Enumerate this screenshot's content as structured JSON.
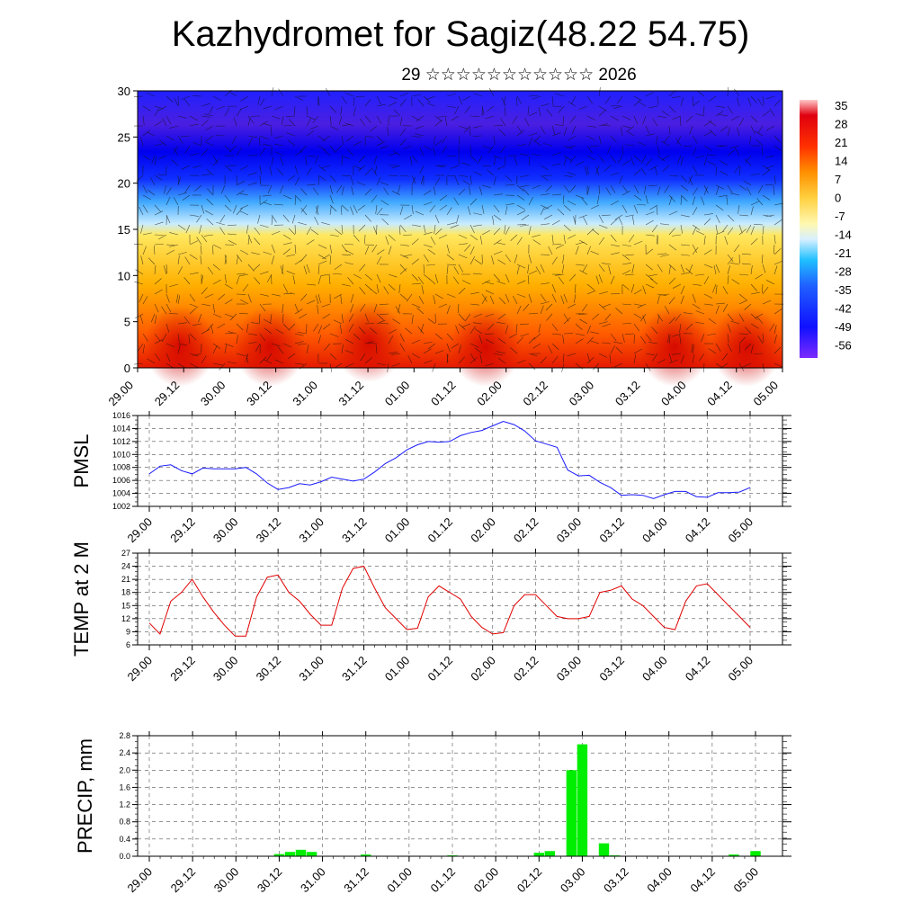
{
  "title": "Kazhydromet for Sagiz(48.22 54.75)",
  "subtitle": "29 ☆☆☆☆☆☆☆☆☆☆☆ 2026",
  "colorbar": {
    "labels": [
      "35",
      "28",
      "21",
      "14",
      "7",
      "0",
      "-7",
      "-14",
      "-21",
      "-28",
      "-35",
      "-42",
      "-49",
      "-56"
    ]
  },
  "x_ticks": [
    "29.00",
    "29.12",
    "30.00",
    "30.12",
    "31.00",
    "31.12",
    "01.00",
    "01.12",
    "02.00",
    "02.12",
    "03.00",
    "03.12",
    "04.00",
    "04.12",
    "05.00"
  ],
  "chart_data": [
    {
      "type": "heatmap",
      "name": "cross-section",
      "y_ticks": [
        "0",
        "5",
        "10",
        "15",
        "20",
        "25",
        "30"
      ],
      "ylim": [
        0,
        30
      ],
      "color_scale_range": [
        -56,
        35
      ]
    },
    {
      "type": "line",
      "ylabel": "PMSL",
      "color": "#1a1aff",
      "ylim": [
        1002,
        1016
      ],
      "y_ticks": [
        "1002",
        "1004",
        "1006",
        "1008",
        "1010",
        "1012",
        "1014",
        "1016"
      ],
      "values": [
        1007.0,
        1008.2,
        1008.4,
        1007.5,
        1007.0,
        1007.9,
        1007.8,
        1007.8,
        1007.8,
        1008.0,
        1007.0,
        1005.6,
        1004.6,
        1004.9,
        1005.5,
        1005.3,
        1005.8,
        1006.5,
        1006.2,
        1005.9,
        1006.2,
        1007.3,
        1008.6,
        1009.5,
        1010.7,
        1011.5,
        1012.0,
        1011.9,
        1012.0,
        1012.9,
        1013.4,
        1013.7,
        1014.4,
        1015.1,
        1014.6,
        1013.6,
        1012.1,
        1011.6,
        1011.1,
        1007.6,
        1006.7,
        1006.8,
        1005.7,
        1004.9,
        1003.7,
        1003.8,
        1003.7,
        1003.2,
        1003.8,
        1004.3,
        1004.3,
        1003.5,
        1003.4,
        1004.1,
        1004.1,
        1004.2,
        1004.9
      ],
      "grid": true
    },
    {
      "type": "line",
      "ylabel": "TEMP at 2 M",
      "color": "#e00000",
      "ylim": [
        6,
        27
      ],
      "y_ticks": [
        "6",
        "9",
        "12",
        "15",
        "18",
        "21",
        "24",
        "27"
      ],
      "values": [
        11,
        8.5,
        16,
        18,
        21,
        17,
        13.5,
        10.5,
        8,
        8,
        17,
        21.5,
        22,
        18,
        16,
        13,
        10.5,
        10.5,
        19,
        23.5,
        24,
        19,
        14.5,
        12,
        9.5,
        9.8,
        17,
        19.5,
        18,
        16.5,
        12.5,
        10,
        8.5,
        8.8,
        15,
        17.5,
        17.5,
        15,
        12.5,
        12,
        12,
        12.5,
        18,
        18.5,
        19.5,
        16.5,
        15,
        12.5,
        10,
        9.5,
        16,
        19.5,
        20,
        17.5,
        15,
        12.5,
        10
      ],
      "grid": true
    },
    {
      "type": "bar",
      "ylabel": "PRECIP, mm",
      "color": "#00ee00",
      "ylim": [
        0,
        2.8
      ],
      "y_ticks": [
        "0.0",
        "0.4",
        "0.8",
        "1.2",
        "1.6",
        "2.0",
        "2.4",
        "2.8"
      ],
      "values": [
        0,
        0,
        0,
        0,
        0,
        0,
        0,
        0,
        0,
        0,
        0,
        0,
        0.05,
        0.1,
        0.15,
        0.1,
        0,
        0,
        0,
        0,
        0.04,
        0,
        0,
        0,
        0,
        0,
        0,
        0,
        0.02,
        0,
        0,
        0,
        0,
        0,
        0,
        0,
        0.08,
        0.12,
        0,
        2.0,
        2.6,
        0,
        0.3,
        0.02,
        0,
        0,
        0,
        0,
        0,
        0,
        0,
        0,
        0,
        0,
        0.04,
        0,
        0.12
      ],
      "grid": true
    }
  ]
}
